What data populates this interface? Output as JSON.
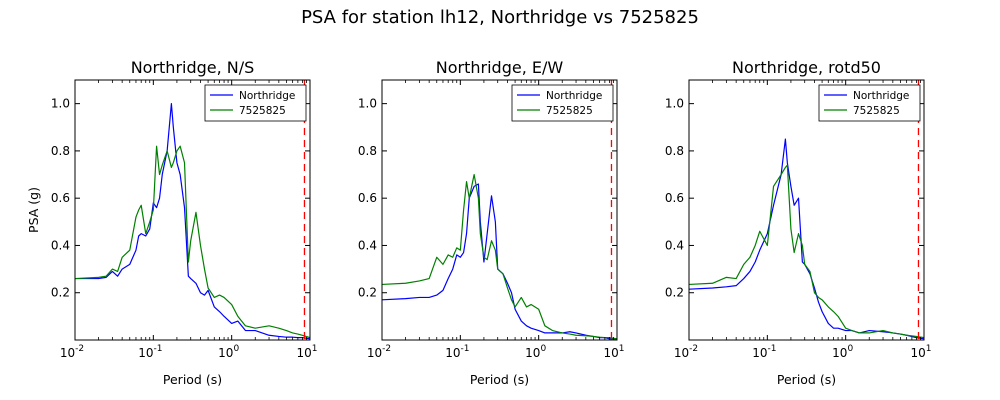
{
  "figure": {
    "title": "PSA for station lh12, Northridge vs 7525825"
  },
  "colors": {
    "northridge": "#0000ff",
    "sim": "#008000",
    "marker": "#ff0000",
    "axes": "#000000"
  },
  "chart_data": [
    {
      "type": "line",
      "title": "Northridge, N/S",
      "xlabel": "Period (s)",
      "ylabel": "PSA (g)",
      "xscale": "log",
      "xlim": [
        0.01,
        10
      ],
      "ylim": [
        0,
        1.1
      ],
      "yticks": [
        "0.2",
        "0.4",
        "0.6",
        "0.8",
        "1.0"
      ],
      "xticks": [
        {
          "base": "10",
          "exp": "-2"
        },
        {
          "base": "10",
          "exp": "-1"
        },
        {
          "base": "10",
          "exp": "0"
        },
        {
          "base": "10",
          "exp": "1"
        }
      ],
      "legend": {
        "position": "upper right",
        "entries": [
          "Northridge",
          "7525825"
        ]
      },
      "vline_x": 8.5,
      "series": [
        {
          "name": "Northridge",
          "color": "#0000ff",
          "x": [
            0.01,
            0.02,
            0.025,
            0.03,
            0.035,
            0.04,
            0.05,
            0.06,
            0.065,
            0.07,
            0.08,
            0.09,
            0.1,
            0.11,
            0.12,
            0.13,
            0.15,
            0.17,
            0.18,
            0.2,
            0.22,
            0.25,
            0.28,
            0.3,
            0.35,
            0.4,
            0.45,
            0.5,
            0.6,
            0.7,
            0.8,
            1.0,
            1.2,
            1.5,
            2.0,
            3.0,
            4.0,
            5.0,
            6.0,
            7.0,
            8.0,
            10.0
          ],
          "y": [
            0.26,
            0.26,
            0.265,
            0.29,
            0.27,
            0.3,
            0.32,
            0.38,
            0.44,
            0.45,
            0.44,
            0.47,
            0.58,
            0.56,
            0.6,
            0.7,
            0.8,
            1.0,
            0.9,
            0.75,
            0.7,
            0.56,
            0.27,
            0.26,
            0.24,
            0.2,
            0.19,
            0.21,
            0.14,
            0.12,
            0.1,
            0.07,
            0.08,
            0.04,
            0.04,
            0.02,
            0.015,
            0.012,
            0.012,
            0.01,
            0.01,
            0.005
          ]
        },
        {
          "name": "7525825",
          "color": "#008000",
          "x": [
            0.01,
            0.02,
            0.025,
            0.03,
            0.035,
            0.04,
            0.05,
            0.06,
            0.065,
            0.07,
            0.08,
            0.09,
            0.1,
            0.11,
            0.12,
            0.13,
            0.15,
            0.17,
            0.18,
            0.2,
            0.22,
            0.25,
            0.28,
            0.3,
            0.35,
            0.4,
            0.45,
            0.5,
            0.6,
            0.7,
            0.8,
            1.0,
            1.2,
            1.5,
            2.0,
            3.0,
            4.0,
            5.0,
            6.0,
            7.0,
            8.0,
            10.0
          ],
          "y": [
            0.26,
            0.265,
            0.27,
            0.3,
            0.29,
            0.35,
            0.38,
            0.52,
            0.55,
            0.57,
            0.45,
            0.5,
            0.55,
            0.82,
            0.7,
            0.74,
            0.8,
            0.73,
            0.75,
            0.8,
            0.82,
            0.75,
            0.33,
            0.42,
            0.54,
            0.4,
            0.3,
            0.22,
            0.18,
            0.19,
            0.18,
            0.15,
            0.1,
            0.06,
            0.05,
            0.06,
            0.05,
            0.04,
            0.03,
            0.025,
            0.02,
            0.01
          ]
        }
      ]
    },
    {
      "type": "line",
      "title": "Northridge, E/W",
      "xlabel": "Period (s)",
      "ylabel": "",
      "xscale": "log",
      "xlim": [
        0.01,
        10
      ],
      "ylim": [
        0,
        1.1
      ],
      "yticks": [
        "0.2",
        "0.4",
        "0.6",
        "0.8",
        "1.0"
      ],
      "xticks": [
        {
          "base": "10",
          "exp": "-2"
        },
        {
          "base": "10",
          "exp": "-1"
        },
        {
          "base": "10",
          "exp": "0"
        },
        {
          "base": "10",
          "exp": "1"
        }
      ],
      "legend": {
        "position": "upper right",
        "entries": [
          "Northridge",
          "7525825"
        ]
      },
      "vline_x": 8.5,
      "series": [
        {
          "name": "Northridge",
          "color": "#0000ff",
          "x": [
            0.01,
            0.02,
            0.03,
            0.04,
            0.05,
            0.06,
            0.07,
            0.08,
            0.09,
            0.1,
            0.11,
            0.12,
            0.13,
            0.15,
            0.17,
            0.18,
            0.2,
            0.22,
            0.25,
            0.28,
            0.3,
            0.35,
            0.4,
            0.45,
            0.5,
            0.6,
            0.7,
            0.8,
            1.0,
            1.2,
            1.5,
            2.0,
            2.5,
            3.0,
            4.0,
            5.0,
            6.0,
            7.0,
            8.0,
            10.0
          ],
          "y": [
            0.17,
            0.175,
            0.18,
            0.18,
            0.19,
            0.21,
            0.26,
            0.3,
            0.36,
            0.35,
            0.37,
            0.45,
            0.6,
            0.65,
            0.66,
            0.5,
            0.33,
            0.45,
            0.61,
            0.5,
            0.3,
            0.28,
            0.24,
            0.2,
            0.13,
            0.08,
            0.06,
            0.05,
            0.04,
            0.03,
            0.03,
            0.03,
            0.035,
            0.03,
            0.02,
            0.015,
            0.01,
            0.01,
            0.005,
            0.005
          ]
        },
        {
          "name": "7525825",
          "color": "#008000",
          "x": [
            0.01,
            0.02,
            0.03,
            0.04,
            0.05,
            0.06,
            0.07,
            0.08,
            0.09,
            0.1,
            0.11,
            0.12,
            0.13,
            0.15,
            0.17,
            0.18,
            0.2,
            0.22,
            0.25,
            0.28,
            0.3,
            0.35,
            0.4,
            0.45,
            0.5,
            0.6,
            0.7,
            0.8,
            1.0,
            1.2,
            1.5,
            2.0,
            2.5,
            3.0,
            4.0,
            5.0,
            6.0,
            7.0,
            8.0,
            10.0
          ],
          "y": [
            0.235,
            0.24,
            0.25,
            0.26,
            0.35,
            0.32,
            0.36,
            0.35,
            0.39,
            0.38,
            0.55,
            0.67,
            0.6,
            0.7,
            0.6,
            0.45,
            0.35,
            0.34,
            0.42,
            0.38,
            0.3,
            0.28,
            0.22,
            0.17,
            0.14,
            0.18,
            0.14,
            0.15,
            0.13,
            0.06,
            0.04,
            0.03,
            0.025,
            0.02,
            0.018,
            0.015,
            0.012,
            0.01,
            0.01,
            0.005
          ]
        }
      ]
    },
    {
      "type": "line",
      "title": "Northridge, rotd50",
      "xlabel": "Period (s)",
      "ylabel": "",
      "xscale": "log",
      "xlim": [
        0.01,
        10
      ],
      "ylim": [
        0,
        1.1
      ],
      "yticks": [
        "0.2",
        "0.4",
        "0.6",
        "0.8",
        "1.0"
      ],
      "xticks": [
        {
          "base": "10",
          "exp": "-2"
        },
        {
          "base": "10",
          "exp": "-1"
        },
        {
          "base": "10",
          "exp": "0"
        },
        {
          "base": "10",
          "exp": "1"
        }
      ],
      "legend": {
        "position": "upper right",
        "entries": [
          "Northridge",
          "7525825"
        ]
      },
      "vline_x": 8.5,
      "series": [
        {
          "name": "Northridge",
          "color": "#0000ff",
          "x": [
            0.01,
            0.02,
            0.03,
            0.04,
            0.05,
            0.06,
            0.07,
            0.08,
            0.1,
            0.12,
            0.15,
            0.17,
            0.18,
            0.2,
            0.22,
            0.25,
            0.28,
            0.3,
            0.35,
            0.4,
            0.45,
            0.5,
            0.6,
            0.7,
            0.8,
            1.0,
            1.2,
            1.5,
            2.0,
            3.0,
            4.0,
            5.0,
            6.0,
            8.0,
            10.0
          ],
          "y": [
            0.215,
            0.22,
            0.225,
            0.23,
            0.26,
            0.29,
            0.33,
            0.38,
            0.45,
            0.57,
            0.7,
            0.85,
            0.75,
            0.65,
            0.57,
            0.6,
            0.33,
            0.32,
            0.28,
            0.22,
            0.16,
            0.12,
            0.07,
            0.05,
            0.05,
            0.04,
            0.04,
            0.03,
            0.04,
            0.035,
            0.03,
            0.025,
            0.02,
            0.01,
            0.005
          ]
        },
        {
          "name": "7525825",
          "color": "#008000",
          "x": [
            0.01,
            0.02,
            0.03,
            0.04,
            0.05,
            0.06,
            0.07,
            0.08,
            0.1,
            0.12,
            0.15,
            0.17,
            0.18,
            0.2,
            0.22,
            0.25,
            0.28,
            0.3,
            0.35,
            0.4,
            0.45,
            0.5,
            0.6,
            0.7,
            0.8,
            1.0,
            1.2,
            1.5,
            2.0,
            3.0,
            4.0,
            5.0,
            6.0,
            8.0,
            10.0
          ],
          "y": [
            0.235,
            0.24,
            0.265,
            0.26,
            0.32,
            0.35,
            0.4,
            0.46,
            0.4,
            0.65,
            0.7,
            0.73,
            0.74,
            0.47,
            0.37,
            0.45,
            0.4,
            0.32,
            0.29,
            0.2,
            0.18,
            0.17,
            0.14,
            0.12,
            0.1,
            0.05,
            0.04,
            0.03,
            0.03,
            0.04,
            0.03,
            0.025,
            0.02,
            0.015,
            0.01
          ]
        }
      ]
    }
  ]
}
